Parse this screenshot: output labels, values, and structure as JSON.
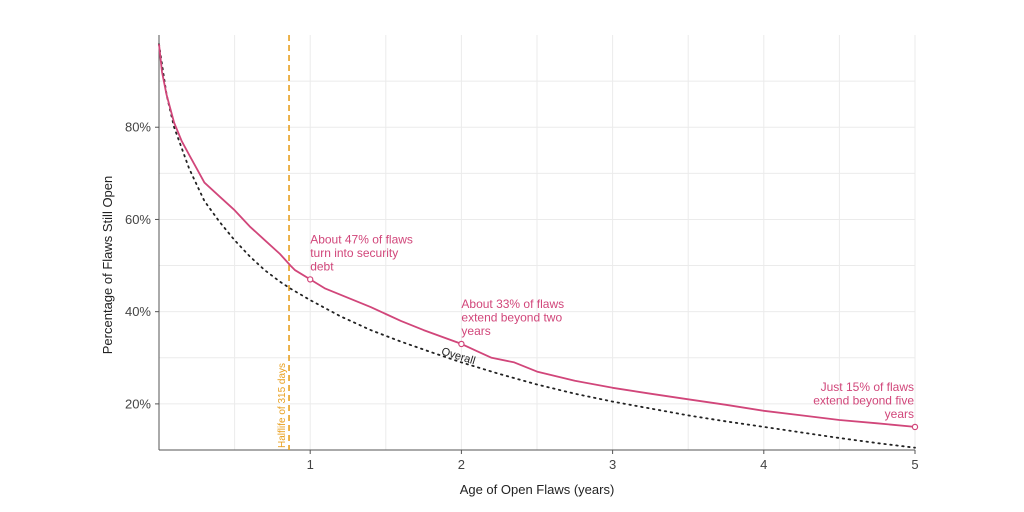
{
  "chart_data": {
    "type": "line",
    "xlabel": "Age of Open Flaws (years)",
    "ylabel": "Percentage of Flaws Still Open",
    "xlim": [
      0,
      5
    ],
    "ylim": [
      0.1,
      1.0
    ],
    "x_ticks": [
      1,
      2,
      3,
      4,
      5
    ],
    "x_tick_labels": [
      "1",
      "2",
      "3",
      "4",
      "5"
    ],
    "y_ticks": [
      0.2,
      0.4,
      0.6,
      0.8
    ],
    "y_tick_labels": [
      "20%",
      "40%",
      "60%",
      "80%"
    ],
    "grid": true,
    "colors": {
      "series": "#d1467a",
      "overall": "#222222",
      "halflife": "#e8a020"
    },
    "series": [
      {
        "x": [
          0,
          0.02,
          0.05,
          0.1,
          0.15,
          0.2,
          0.25,
          0.3,
          0.4,
          0.5,
          0.6,
          0.7,
          0.8,
          0.87,
          0.9,
          1.0,
          1.1,
          1.25,
          1.4,
          1.5,
          1.6,
          1.75,
          1.9,
          2.0,
          2.1,
          2.2,
          2.35,
          2.5,
          2.75,
          3.0,
          3.25,
          3.5,
          3.75,
          4.0,
          4.25,
          4.5,
          4.75,
          5.0
        ],
        "y": [
          0.98,
          0.92,
          0.87,
          0.81,
          0.77,
          0.74,
          0.71,
          0.68,
          0.65,
          0.62,
          0.585,
          0.555,
          0.525,
          0.5,
          0.49,
          0.47,
          0.45,
          0.43,
          0.41,
          0.395,
          0.38,
          0.36,
          0.342,
          0.33,
          0.315,
          0.3,
          0.29,
          0.27,
          0.25,
          0.235,
          0.222,
          0.21,
          0.198,
          0.185,
          0.175,
          0.165,
          0.158,
          0.15
        ]
      },
      {
        "name": "Overall",
        "x": [
          0,
          0.05,
          0.1,
          0.2,
          0.3,
          0.4,
          0.5,
          0.6,
          0.7,
          0.8,
          0.87,
          1.0,
          1.2,
          1.4,
          1.6,
          1.8,
          2.0,
          2.25,
          2.5,
          2.75,
          3.0,
          3.25,
          3.5,
          3.75,
          4.0,
          4.25,
          4.5,
          4.75,
          5.0
        ],
        "y": [
          0.98,
          0.87,
          0.8,
          0.71,
          0.64,
          0.595,
          0.555,
          0.52,
          0.49,
          0.465,
          0.45,
          0.425,
          0.39,
          0.36,
          0.335,
          0.312,
          0.29,
          0.265,
          0.242,
          0.222,
          0.205,
          0.19,
          0.175,
          0.162,
          0.15,
          0.138,
          0.126,
          0.115,
          0.105
        ]
      }
    ],
    "overall_label": "Overall",
    "halflife": {
      "x": 0.86,
      "label": "Halflife of 315 days"
    },
    "annotations": [
      {
        "x": 1.0,
        "y": 0.47,
        "lines": [
          "About 47% of flaws",
          "turn into security",
          "debt"
        ],
        "anchor": "start"
      },
      {
        "x": 2.0,
        "y": 0.33,
        "lines": [
          "About 33% of flaws",
          "extend beyond two",
          "years"
        ],
        "anchor": "start"
      },
      {
        "x": 5.0,
        "y": 0.15,
        "lines": [
          "Just 15% of flaws",
          "extend beyond five",
          "years"
        ],
        "anchor": "end"
      }
    ]
  }
}
